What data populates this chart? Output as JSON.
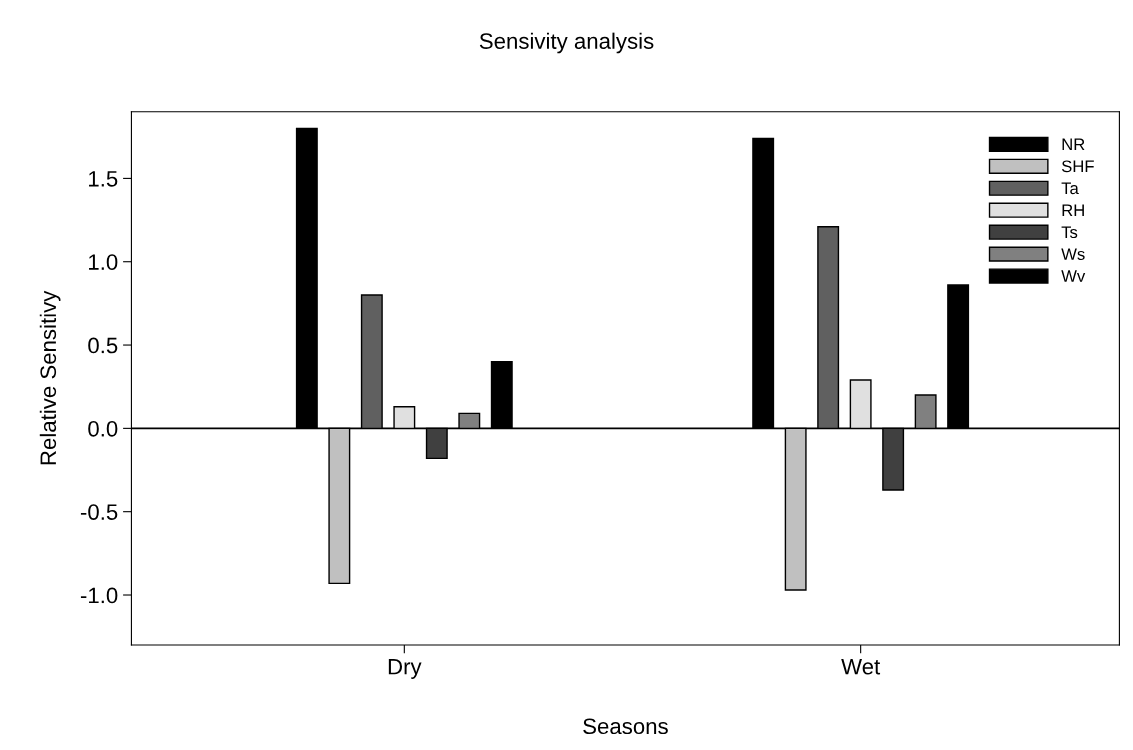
{
  "chart_data": {
    "type": "bar",
    "title": "Sensivity analysis",
    "xlabel": "Seasons",
    "ylabel": "Relative Sensitivy",
    "categories": [
      "Dry",
      "Wet"
    ],
    "series": [
      {
        "name": "NR",
        "color": "#000000",
        "values": [
          1.8,
          1.74
        ]
      },
      {
        "name": "SHF",
        "color": "#c0c0c0",
        "values": [
          -0.93,
          -0.97
        ]
      },
      {
        "name": "Ta",
        "color": "#606060",
        "values": [
          0.8,
          1.21
        ]
      },
      {
        "name": "RH",
        "color": "#e0e0e0",
        "values": [
          0.13,
          0.29
        ]
      },
      {
        "name": "Ts",
        "color": "#404040",
        "values": [
          -0.18,
          -0.37
        ]
      },
      {
        "name": "Ws",
        "color": "#808080",
        "values": [
          0.09,
          0.2
        ]
      },
      {
        "name": "Wv",
        "color": "#000000",
        "values": [
          0.4,
          0.86
        ]
      }
    ],
    "ylim": [
      -1.3,
      1.9
    ],
    "yticks": [
      {
        "value": -1.0,
        "label": "-1.0"
      },
      -0.5,
      {
        "value": 0.0,
        "label": "0.0"
      },
      0.5,
      {
        "value": 1.0,
        "label": "1.0"
      },
      1.5
    ],
    "ref_lines": [
      {
        "axis": "y",
        "value": 0,
        "label": null,
        "color": "#000000"
      }
    ],
    "legend": "top right",
    "grid": false
  }
}
